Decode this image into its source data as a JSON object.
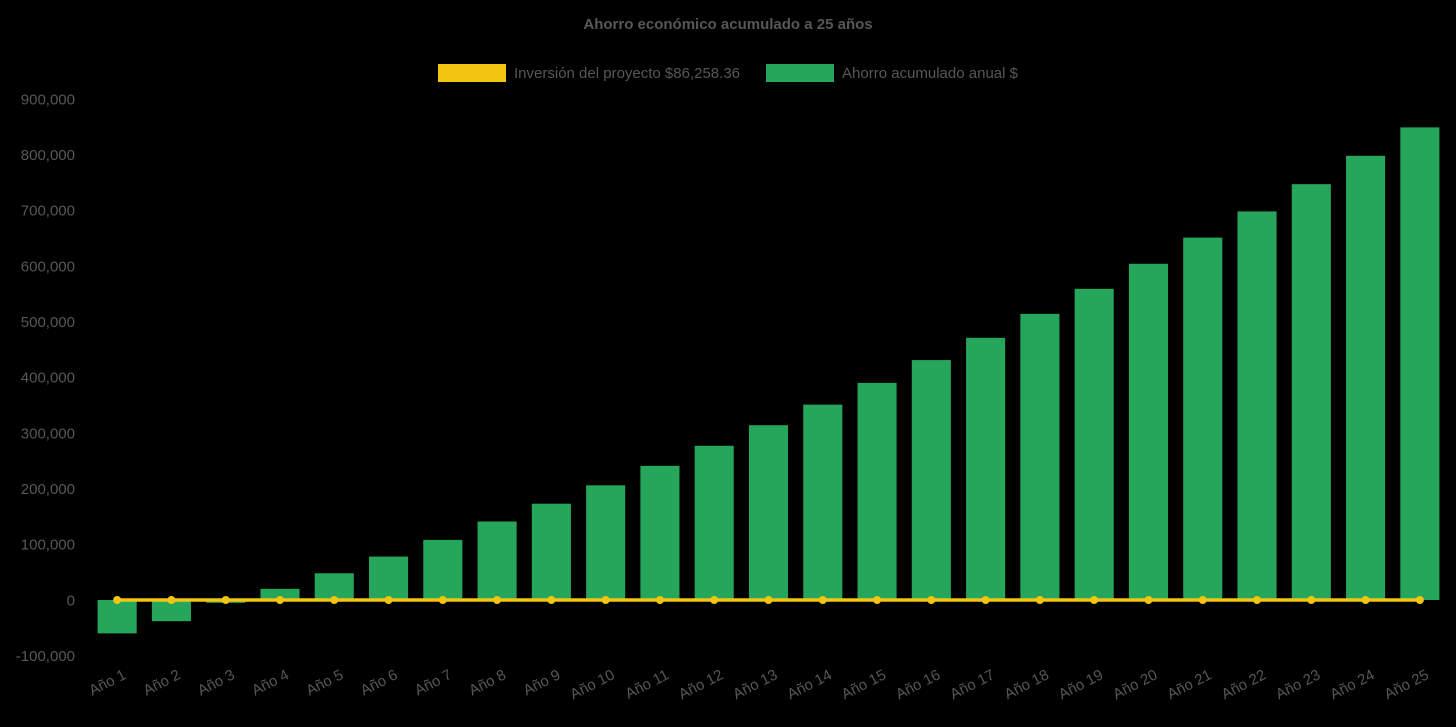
{
  "title": "Ahorro económico acumulado a 25 años",
  "legend": [
    {
      "label": "Inversión del proyecto $86,258.36",
      "color": "#f2c512",
      "type": "line"
    },
    {
      "label": "Ahorro acumulado anual $",
      "color": "#26a65b",
      "type": "bar"
    }
  ],
  "colors": {
    "background": "#000000",
    "text": "#575757",
    "bar_green": "#26a65b",
    "line_yellow": "#f2c512"
  },
  "chart_data": {
    "type": "bar",
    "title": "Ahorro económico acumulado a 25 años",
    "categories": [
      "Año 1",
      "Año 2",
      "Año 3",
      "Año 4",
      "Año 5",
      "Año 6",
      "Año 7",
      "Año 8",
      "Año 9",
      "Año 10",
      "Año 11",
      "Año 12",
      "Año 13",
      "Año 14",
      "Año 15",
      "Año 16",
      "Año 17",
      "Año 18",
      "Año 19",
      "Año 20",
      "Año 21",
      "Año 22",
      "Año 23",
      "Año 24",
      "Año 25"
    ],
    "series": [
      {
        "name": "Ahorro acumulado anual $",
        "type": "bar",
        "color": "#26a65b",
        "values": [
          -60000,
          -38000,
          -5000,
          20000,
          48000,
          78000,
          108000,
          141000,
          173000,
          206000,
          241000,
          277000,
          314000,
          351000,
          390000,
          431000,
          471000,
          514000,
          559000,
          604000,
          651000,
          698000,
          747000,
          798000,
          849000
        ]
      },
      {
        "name": "Inversión del proyecto $86,258.36",
        "type": "line",
        "color": "#f2c512",
        "values": [
          0,
          0,
          0,
          0,
          0,
          0,
          0,
          0,
          0,
          0,
          0,
          0,
          0,
          0,
          0,
          0,
          0,
          0,
          0,
          0,
          0,
          0,
          0,
          0,
          0
        ]
      }
    ],
    "xlabel": "",
    "ylabel": "",
    "ylim": [
      -100000,
      900000
    ],
    "ytick_interval": 100000,
    "ytick_labels": [
      "-100,000",
      "0",
      "100,000",
      "200,000",
      "300,000",
      "400,000",
      "500,000",
      "600,000",
      "700,000",
      "800,000",
      "900,000"
    ],
    "grid": false,
    "legend_position": "top"
  }
}
